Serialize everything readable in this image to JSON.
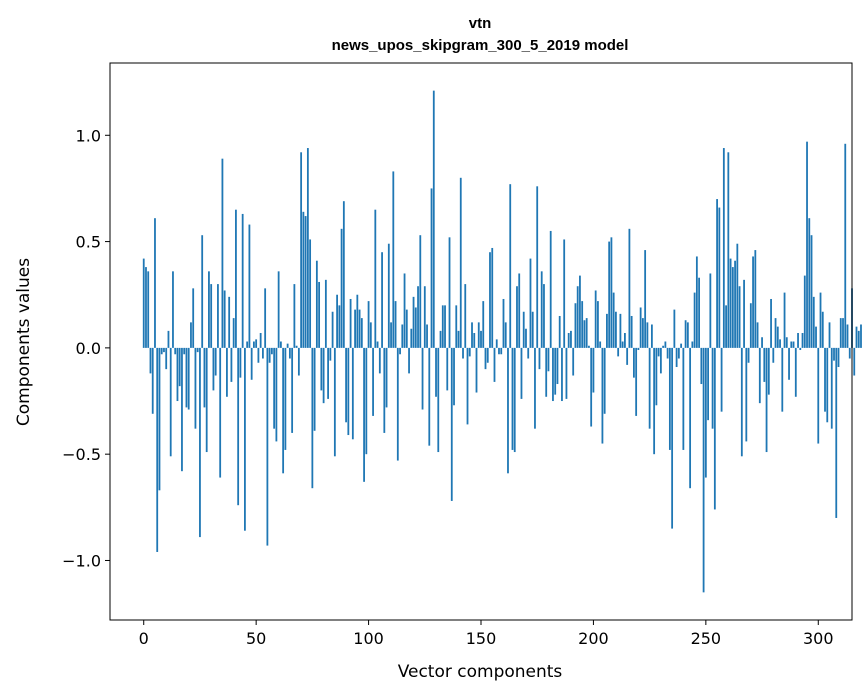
{
  "chart_data": {
    "type": "bar",
    "title": "vtn",
    "subtitle": "news_upos_skipgram_300_5_2019 model",
    "xlabel": "Vector components",
    "ylabel": "Components values",
    "xlim": [
      -15,
      315
    ],
    "ylim": [
      -1.28,
      1.34
    ],
    "xticks": [
      0,
      50,
      100,
      150,
      200,
      250,
      300
    ],
    "yticks": [
      -1.0,
      -0.5,
      0.0,
      0.5,
      1.0
    ],
    "xtick_labels": [
      "0",
      "50",
      "100",
      "150",
      "200",
      "250",
      "300"
    ],
    "ytick_labels": [
      "−1.0",
      "−0.5",
      "0.0",
      "0.5",
      "1.0"
    ],
    "series_color": "#1f77b4",
    "values": [
      0.42,
      0.38,
      0.36,
      -0.12,
      -0.31,
      0.61,
      -0.96,
      -0.67,
      -0.03,
      -0.02,
      -0.1,
      0.08,
      -0.51,
      0.36,
      -0.03,
      -0.25,
      -0.18,
      -0.58,
      -0.03,
      -0.28,
      -0.29,
      0.12,
      0.28,
      -0.38,
      -0.02,
      -0.89,
      0.53,
      -0.28,
      -0.49,
      0.36,
      0.3,
      -0.2,
      -0.13,
      0.3,
      -0.61,
      0.89,
      0.27,
      -0.23,
      0.24,
      -0.16,
      0.14,
      0.65,
      -0.74,
      -0.14,
      0.63,
      -0.86,
      0.03,
      0.58,
      -0.15,
      0.03,
      0.04,
      -0.07,
      0.07,
      -0.05,
      0.28,
      -0.93,
      -0.07,
      -0.03,
      -0.38,
      -0.44,
      0.36,
      0.03,
      -0.59,
      -0.48,
      0.02,
      -0.05,
      -0.4,
      0.3,
      0.01,
      -0.13,
      0.92,
      0.64,
      0.62,
      0.94,
      0.51,
      -0.66,
      -0.39,
      0.41,
      0.31,
      -0.2,
      -0.26,
      0.32,
      -0.24,
      -0.06,
      0.17,
      -0.51,
      0.25,
      0.2,
      0.56,
      0.69,
      -0.35,
      -0.41,
      0.23,
      -0.43,
      0.18,
      0.25,
      0.18,
      0.14,
      -0.63,
      -0.5,
      0.22,
      0.12,
      -0.32,
      0.65,
      0.03,
      -0.12,
      0.45,
      -0.4,
      -0.28,
      0.49,
      0.12,
      0.83,
      0.22,
      -0.53,
      -0.03,
      0.11,
      0.35,
      0.18,
      -0.12,
      0.09,
      0.24,
      0.19,
      0.29,
      0.53,
      -0.29,
      0.29,
      0.11,
      -0.46,
      0.75,
      1.21,
      -0.23,
      -0.49,
      0.08,
      0.2,
      0.2,
      -0.2,
      0.52,
      -0.72,
      -0.27,
      0.2,
      0.08,
      0.8,
      -0.05,
      0.3,
      -0.36,
      -0.04,
      0.12,
      0.07,
      -0.21,
      0.12,
      0.08,
      0.22,
      -0.1,
      -0.07,
      0.45,
      0.47,
      -0.16,
      0.04,
      -0.03,
      -0.03,
      0.23,
      0.12,
      -0.59,
      0.77,
      -0.48,
      -0.49,
      0.29,
      0.35,
      -0.24,
      0.17,
      0.09,
      -0.05,
      0.42,
      0.17,
      -0.38,
      0.76,
      -0.1,
      0.36,
      0.3,
      -0.23,
      -0.11,
      0.55,
      -0.25,
      -0.22,
      -0.17,
      0.15,
      -0.25,
      0.51,
      -0.24,
      0.07,
      0.08,
      -0.13,
      0.21,
      0.29,
      0.34,
      0.22,
      0.13,
      0.14,
      0.01,
      -0.37,
      -0.21,
      0.27,
      0.22,
      0.03,
      -0.45,
      -0.31,
      0.16,
      0.5,
      0.52,
      0.26,
      0.17,
      -0.04,
      0.16,
      0.03,
      0.07,
      -0.08,
      0.56,
      0.15,
      -0.14,
      -0.32,
      -0.01,
      0.19,
      0.14,
      0.46,
      0.12,
      -0.38,
      0.11,
      -0.5,
      -0.27,
      -0.04,
      -0.12,
      0.01,
      0.03,
      -0.05,
      -0.48,
      -0.85,
      0.18,
      -0.09,
      -0.05,
      0.02,
      -0.48,
      0.13,
      0.12,
      -0.66,
      0.03,
      0.26,
      0.43,
      0.33,
      -0.17,
      -1.15,
      -0.61,
      -0.34,
      0.35,
      -0.38,
      -0.76,
      0.7,
      0.66,
      -0.3,
      0.94,
      0.2,
      0.92,
      0.42,
      0.38,
      0.41,
      0.49,
      0.29,
      -0.51,
      0.32,
      -0.44,
      -0.07,
      0.21,
      0.43,
      0.46,
      0.12,
      -0.26,
      0.05,
      -0.16,
      -0.49,
      -0.22,
      0.23,
      -0.07,
      0.14,
      0.1,
      0.04,
      -0.3,
      0.26,
      0.05,
      -0.15,
      0.03,
      0.03,
      -0.23,
      0.07,
      -0.01,
      0.07,
      0.34,
      0.97,
      0.61,
      0.53,
      0.24,
      0.1,
      -0.45,
      0.26,
      0.17,
      -0.3,
      -0.35,
      0.12,
      -0.38,
      -0.06,
      -0.8,
      -0.09,
      0.14,
      0.14,
      0.96,
      0.11,
      -0.05,
      0.28,
      -0.13,
      0.1,
      0.08,
      0.11
    ]
  }
}
